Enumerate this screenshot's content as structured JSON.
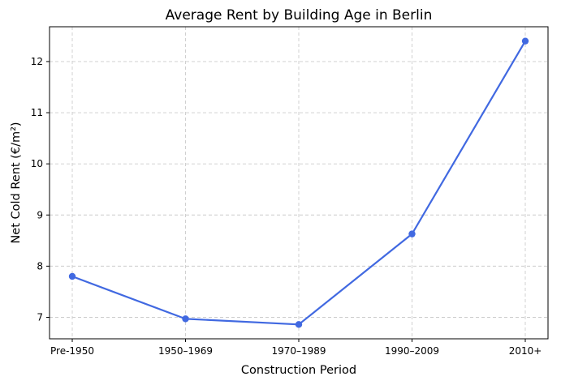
{
  "chart_data": {
    "type": "line",
    "title": "Average Rent by Building Age in Berlin",
    "xlabel": "Construction Period",
    "ylabel": "Net Cold Rent (€/m²)",
    "categories": [
      "Pre-1950",
      "1950–1969",
      "1970–1989",
      "1990–2009",
      "2010+"
    ],
    "series": [
      {
        "values": [
          7.8,
          6.97,
          6.86,
          8.63,
          12.4
        ],
        "color": "#4169e1"
      }
    ],
    "yticks": [
      7,
      8,
      9,
      10,
      11,
      12
    ],
    "ylim": [
      6.58,
      12.68
    ],
    "grid": true,
    "legend": "none"
  }
}
